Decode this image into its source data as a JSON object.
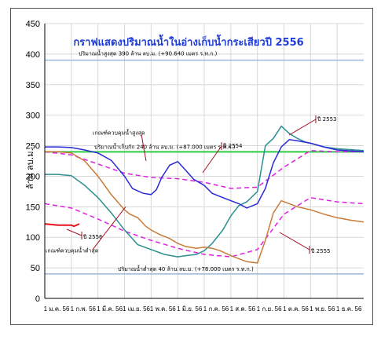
{
  "chart_data": {
    "type": "line",
    "title": "กราฟแสดงปริมาณน้ำในอ่างเก็บน้ำกระเสียวปี 2556",
    "ylabel": "ล้าน ลบ.ม.",
    "xlabel": "",
    "ylim": [
      0,
      450
    ],
    "yticks": [
      0,
      50,
      100,
      150,
      200,
      250,
      300,
      350,
      400,
      450
    ],
    "x_categories": [
      "1 ม.ค. 56",
      "1 ก.พ. 56",
      "1 มี.ค. 56",
      "1 เม.ย. 56",
      "1 พ.ค. 56",
      "1 มิ.ย. 56",
      "1 ก.ค. 56",
      "1 ส.ค. 56",
      "1 ก.ย. 56",
      "1 ต.ค. 56",
      "1 พ.ย. 56",
      "1 ธ.ค. 56"
    ],
    "grid": true,
    "reference_lines": [
      {
        "label": "ปริมาณน้ำสูงสุด 390 ล้าน ลบ.ม. (+90.640 เมตร ร.ท.ก.)",
        "value": 390,
        "color": "#9fb7d6"
      },
      {
        "label": "ปริมาณน้ำเก็บกัก 240 ล้าน ลบ.ม. (+87.000 เมตร ร.ท.ก.)",
        "value": 240,
        "color": "#2ecc40"
      },
      {
        "label": "ปริมาณน้ำต่ำสุด 40 ล้าน ลบ.ม. (+78.000 เมตร ร.ท.ก.)",
        "value": 40,
        "color": "#9fb7d6"
      }
    ],
    "series": [
      {
        "name": "ปี 2553",
        "color": "#2a8f8f",
        "points": [
          [
            0,
            203
          ],
          [
            0.5,
            203
          ],
          [
            1,
            201
          ],
          [
            1.5,
            185
          ],
          [
            2,
            165
          ],
          [
            2.5,
            140
          ],
          [
            3,
            112
          ],
          [
            3.5,
            88
          ],
          [
            4,
            80
          ],
          [
            4.5,
            72
          ],
          [
            5,
            68
          ],
          [
            5.3,
            70
          ],
          [
            5.7,
            72
          ],
          [
            6,
            78
          ],
          [
            6.3,
            90
          ],
          [
            6.7,
            112
          ],
          [
            7,
            135
          ],
          [
            7.3,
            152
          ],
          [
            7.6,
            158
          ],
          [
            8,
            175
          ],
          [
            8.3,
            250
          ],
          [
            8.6,
            262
          ],
          [
            8.9,
            282
          ],
          [
            9.2,
            270
          ],
          [
            9.5,
            262
          ],
          [
            9.8,
            256
          ],
          [
            10,
            254
          ],
          [
            10.5,
            248
          ],
          [
            11,
            245
          ],
          [
            12,
            242
          ]
        ]
      },
      {
        "name": "ปี 2554",
        "color": "#2a2ad6",
        "points": [
          [
            0,
            248
          ],
          [
            0.5,
            248
          ],
          [
            1,
            247
          ],
          [
            1.5,
            243
          ],
          [
            2,
            238
          ],
          [
            2.5,
            226
          ],
          [
            3,
            200
          ],
          [
            3.3,
            180
          ],
          [
            3.7,
            172
          ],
          [
            4,
            170
          ],
          [
            4.2,
            178
          ],
          [
            4.4,
            198
          ],
          [
            4.7,
            218
          ],
          [
            5,
            224
          ],
          [
            5.3,
            210
          ],
          [
            5.6,
            195
          ],
          [
            6,
            185
          ],
          [
            6.3,
            172
          ],
          [
            6.7,
            165
          ],
          [
            7,
            160
          ],
          [
            7.3,
            155
          ],
          [
            7.6,
            148
          ],
          [
            8,
            155
          ],
          [
            8.3,
            180
          ],
          [
            8.6,
            222
          ],
          [
            8.9,
            248
          ],
          [
            9.2,
            260
          ],
          [
            9.5,
            258
          ],
          [
            10,
            254
          ],
          [
            10.5,
            248
          ],
          [
            11,
            243
          ],
          [
            12,
            240
          ]
        ]
      },
      {
        "name": "ปี 2555",
        "color": "#c87a3a",
        "points": [
          [
            0,
            240
          ],
          [
            0.5,
            240
          ],
          [
            1,
            238
          ],
          [
            1.5,
            225
          ],
          [
            2,
            200
          ],
          [
            2.5,
            170
          ],
          [
            3,
            145
          ],
          [
            3.2,
            138
          ],
          [
            3.5,
            132
          ],
          [
            3.8,
            118
          ],
          [
            4,
            112
          ],
          [
            4.3,
            105
          ],
          [
            4.7,
            98
          ],
          [
            5,
            90
          ],
          [
            5.3,
            85
          ],
          [
            5.7,
            82
          ],
          [
            6,
            84
          ],
          [
            6.3,
            82
          ],
          [
            6.6,
            78
          ],
          [
            7,
            70
          ],
          [
            7.3,
            65
          ],
          [
            7.6,
            60
          ],
          [
            8,
            58
          ],
          [
            8.3,
            95
          ],
          [
            8.6,
            140
          ],
          [
            8.9,
            160
          ],
          [
            9.2,
            155
          ],
          [
            9.5,
            150
          ],
          [
            10,
            145
          ],
          [
            10.5,
            138
          ],
          [
            11,
            132
          ],
          [
            11.5,
            128
          ],
          [
            12,
            125
          ]
        ]
      },
      {
        "name": "ปี 2556",
        "color": "#e8101b",
        "points": [
          [
            0,
            122
          ],
          [
            0.5,
            120
          ],
          [
            1,
            120
          ],
          [
            1.1,
            118
          ],
          [
            1.3,
            122
          ]
        ]
      }
    ],
    "rule_curves": [
      {
        "label": "เกณฑ์ควบคุมน้ำสูงสุด",
        "color": "#e020e0",
        "points": [
          [
            0,
            240
          ],
          [
            1,
            235
          ],
          [
            2,
            220
          ],
          [
            3,
            205
          ],
          [
            4,
            198
          ],
          [
            5,
            196
          ],
          [
            6,
            190
          ],
          [
            7,
            180
          ],
          [
            8,
            182
          ],
          [
            9,
            215
          ],
          [
            10,
            242
          ],
          [
            11,
            240
          ],
          [
            12,
            240
          ]
        ]
      },
      {
        "label": "เกณฑ์ควบคุมน้ำต่ำสุด",
        "color": "#e020e0",
        "points": [
          [
            0,
            155
          ],
          [
            1,
            148
          ],
          [
            2,
            130
          ],
          [
            3,
            110
          ],
          [
            4,
            95
          ],
          [
            5,
            82
          ],
          [
            6,
            72
          ],
          [
            7,
            68
          ],
          [
            8,
            80
          ],
          [
            9,
            138
          ],
          [
            10,
            165
          ],
          [
            11,
            158
          ],
          [
            12,
            155
          ]
        ]
      }
    ],
    "annotations": [
      "ปี 2553",
      "ปี 2554",
      "ปี 2555",
      "ปี 2556"
    ]
  }
}
